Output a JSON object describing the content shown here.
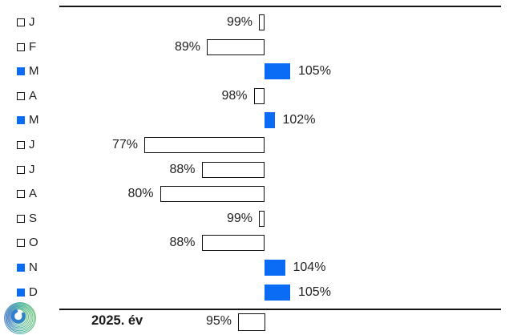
{
  "chart_data": {
    "type": "bar",
    "orientation": "horizontal",
    "baseline": 100,
    "unit": "%",
    "categories": [
      "J",
      "F",
      "M",
      "A",
      "M",
      "J",
      "J",
      "A",
      "S",
      "O",
      "N",
      "D"
    ],
    "values": [
      99,
      89,
      105,
      98,
      102,
      77,
      88,
      80,
      99,
      88,
      104,
      105
    ],
    "value_labels": [
      "99%",
      "89%",
      "105%",
      "98%",
      "102%",
      "77%",
      "88%",
      "80%",
      "99%",
      "88%",
      "104%",
      "105%"
    ],
    "summary_row": {
      "label": "2025. év",
      "value": 95,
      "value_label": "95%"
    },
    "legend_note": "filled square marks months at or above 100%",
    "colors": {
      "above_baseline_fill": "#0a6cf4",
      "below_baseline_fill": "#ffffff",
      "bar_border": "#111111",
      "axis_line": "#141414",
      "text": "#1f1f1f"
    },
    "grid": false,
    "axis_labels_visible": false
  },
  "logo": {
    "name": "spiral-wave-logo",
    "colors": [
      "#4f86c6",
      "#47b39d",
      "#67c27c",
      "#2f80d0"
    ]
  }
}
